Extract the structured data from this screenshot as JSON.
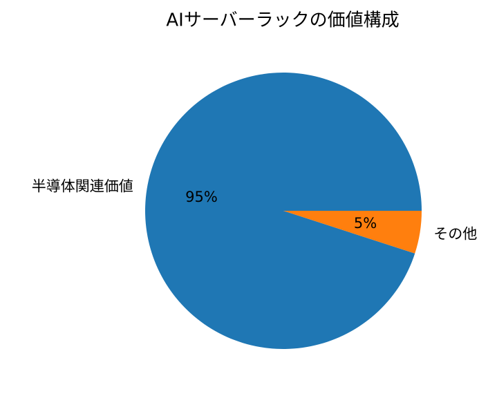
{
  "chart_data": {
    "type": "pie",
    "title": "AIサーバーラックの価値構成",
    "categories": [
      "半導体関連価値",
      "その他"
    ],
    "values": [
      95,
      5
    ],
    "value_labels": [
      "95%",
      "5%"
    ],
    "colors": [
      "#1f77b4",
      "#ff7f0e"
    ]
  }
}
